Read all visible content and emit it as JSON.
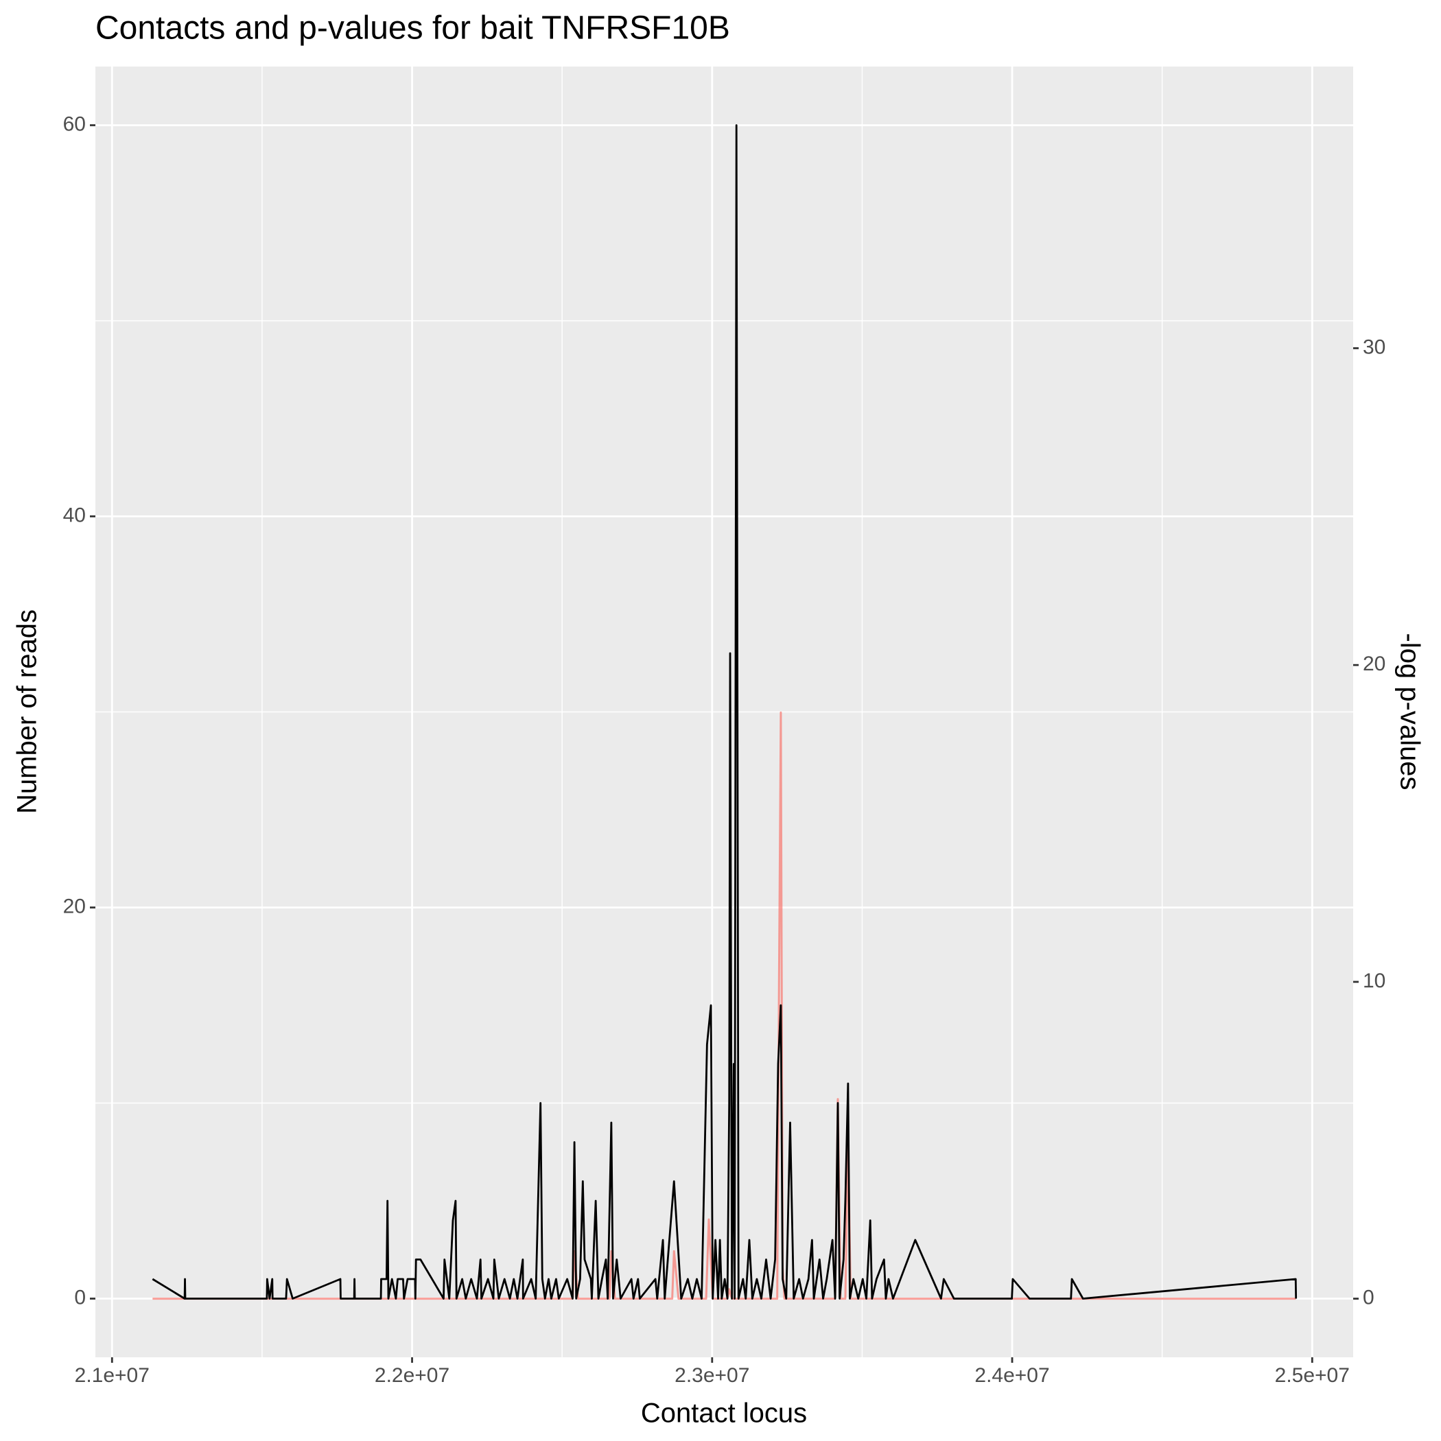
{
  "chart_data": {
    "type": "line",
    "title": "Contacts and p-values for bait TNFRSF10B",
    "x_label": "Contact locus",
    "y_label": "Number of reads",
    "y2_label": "-log p-values",
    "xlim": [
      20944450,
      25136550
    ],
    "xticks": [
      {
        "value": 21000000,
        "label": "2.1e+07"
      },
      {
        "value": 22000000,
        "label": "2.2e+07"
      },
      {
        "value": 23000000,
        "label": "2.3e+07"
      },
      {
        "value": 24000000,
        "label": "2.4e+07"
      },
      {
        "value": 25000000,
        "label": "2.5e+07"
      }
    ],
    "x_minor_grid": [
      21500000,
      22500000,
      23500000,
      24500000
    ],
    "ylim": [
      -3,
      63
    ],
    "yticks": [
      0,
      20,
      40,
      60
    ],
    "y_minor_grid": [
      10,
      30,
      50
    ],
    "y2lim": [
      -1.85,
      38.89
    ],
    "y2ticks": [
      0,
      10,
      20,
      30
    ],
    "grid": true,
    "panel_color": "#EBEBEB",
    "series": [
      {
        "color": "#F8766D",
        "axis": "y2",
        "x": [
          21135000,
          22535000,
          22541000,
          22553000,
          22658000,
          22664000,
          22676000,
          22867000,
          22873000,
          22888000,
          22980000,
          22989000,
          23002000,
          23051000,
          23057000,
          23066000,
          23217000,
          23223000,
          23229000,
          23235000,
          23241000,
          23410000,
          23419000,
          23428000,
          23444000,
          23453000,
          23462000,
          24946000
        ],
        "values": [
          0,
          0,
          1.5,
          0,
          0,
          1.5,
          0,
          0,
          1.5,
          0,
          0,
          2.5,
          0,
          0,
          0.3,
          0,
          0,
          10,
          18.5,
          1,
          0,
          0,
          6.3,
          0,
          0,
          5,
          0,
          0
        ]
      },
      {
        "color": "#000000",
        "x": [
          21135000,
          21242000,
          21243000,
          21244000,
          21516000,
          21517000,
          21525000,
          21534000,
          21535000,
          21580000,
          21583000,
          21602000,
          21761000,
          21762000,
          21807000,
          21808000,
          21809000,
          21896000,
          21897000,
          21915000,
          21918000,
          21921000,
          21933000,
          21946000,
          21952000,
          21970000,
          21973000,
          21985000,
          22010000,
          22011000,
          22013000,
          22028000,
          22105000,
          22108000,
          22124000,
          22136000,
          22145000,
          22148000,
          22167000,
          22179000,
          22197000,
          22216000,
          22228000,
          22231000,
          22253000,
          22271000,
          22274000,
          22289000,
          22308000,
          22326000,
          22339000,
          22351000,
          22369000,
          22370000,
          22397000,
          22412000,
          22428000,
          22434000,
          22443000,
          22455000,
          22464000,
          22480000,
          22489000,
          22517000,
          22535000,
          22541000,
          22547000,
          22560000,
          22569000,
          22575000,
          22596000,
          22599000,
          22612000,
          22621000,
          22633000,
          22646000,
          22652000,
          22664000,
          22670000,
          22682000,
          22695000,
          22731000,
          22738000,
          22753000,
          22759000,
          22811000,
          22817000,
          22836000,
          22842000,
          22873000,
          22897000,
          22919000,
          22934000,
          22949000,
          22965000,
          22983000,
          22996000,
          23002000,
          23011000,
          23020000,
          23026000,
          23032000,
          23042000,
          23051000,
          23057000,
          23060000,
          23066000,
          23072000,
          23075000,
          23081000,
          23088000,
          23103000,
          23112000,
          23124000,
          23134000,
          23149000,
          23164000,
          23180000,
          23195000,
          23210000,
          23220000,
          23229000,
          23235000,
          23247000,
          23260000,
          23272000,
          23290000,
          23303000,
          23321000,
          23333000,
          23339000,
          23358000,
          23370000,
          23382000,
          23401000,
          23410000,
          23419000,
          23425000,
          23438000,
          23444000,
          23453000,
          23459000,
          23471000,
          23487000,
          23502000,
          23514000,
          23527000,
          23533000,
          23548000,
          23573000,
          23579000,
          23588000,
          23603000,
          23677000,
          23763000,
          23772000,
          23806000,
          23999000,
          24002000,
          24058000,
          24196000,
          24199000,
          24236000,
          24945000,
          24946000
        ],
        "values": [
          1,
          0,
          1,
          0,
          0,
          1,
          0,
          1,
          0,
          0,
          1,
          0,
          1,
          0,
          0,
          1,
          0,
          0,
          1,
          1,
          5,
          0,
          1,
          0,
          1,
          1,
          0,
          1,
          1,
          0,
          2,
          2,
          0,
          2,
          0,
          4,
          5,
          0,
          1,
          0,
          1,
          0,
          2,
          0,
          1,
          0,
          2,
          0,
          1,
          0,
          1,
          0,
          2,
          0,
          1,
          0,
          10,
          1,
          0,
          1,
          0,
          1,
          0,
          1,
          0,
          8,
          0,
          1,
          6,
          2,
          1,
          0,
          5,
          0,
          1,
          2,
          0,
          9,
          0,
          2,
          0,
          1,
          0,
          1,
          0,
          1,
          0,
          3,
          0,
          6,
          0,
          1,
          0,
          1,
          0,
          13,
          15,
          0,
          3,
          0,
          3,
          0,
          1,
          0,
          10,
          33,
          0,
          12,
          0,
          60,
          0,
          1,
          0,
          3,
          0,
          1,
          0,
          2,
          0,
          2,
          12,
          15,
          1,
          0,
          9,
          0,
          1,
          0,
          1,
          3,
          0,
          2,
          0,
          1,
          3,
          0,
          10,
          0,
          2,
          5,
          11,
          0,
          1,
          0,
          1,
          0,
          4,
          0,
          1,
          2,
          0,
          1,
          0,
          3,
          0,
          1,
          0,
          0,
          1,
          0,
          0,
          1,
          0,
          1,
          0
        ]
      }
    ]
  }
}
